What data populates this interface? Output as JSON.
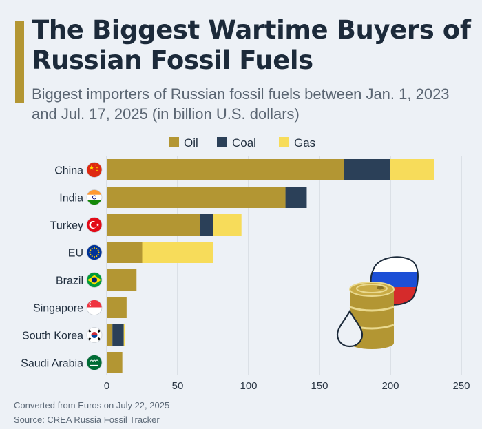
{
  "title": "The Biggest Wartime Buyers of Russian Fossil Fuels",
  "subtitle": "Biggest importers of Russian fossil fuels between Jan. 1, 2023 and Jul. 17, 2025 (in billion U.S. dollars)",
  "footer": {
    "note": "Converted from Euros on July 22, 2025",
    "source": "Source: CREA Russia Fossil Tracker"
  },
  "colors": {
    "accent": "#b39633",
    "oil": "#b39633",
    "coal": "#2b4058",
    "gas": "#f7dc5a",
    "grid": "#c9cfd6",
    "background": "#edf1f6"
  },
  "chart_data": {
    "type": "bar",
    "orientation": "horizontal",
    "stacked": true,
    "title": "The Biggest Wartime Buyers of Russian Fossil Fuels",
    "subtitle": "Biggest importers of Russian fossil fuels between Jan. 1, 2023 and Jul. 17, 2025 (in billion U.S. dollars)",
    "categories": [
      "China",
      "India",
      "Turkey",
      "EU",
      "Brazil",
      "Singapore",
      "South Korea",
      "Saudi Arabia"
    ],
    "flag_icons": [
      "china-flag-icon",
      "india-flag-icon",
      "turkey-flag-icon",
      "eu-flag-icon",
      "brazil-flag-icon",
      "singapore-flag-icon",
      "south-korea-flag-icon",
      "saudi-arabia-flag-icon"
    ],
    "series": [
      {
        "name": "Oil",
        "color": "#b39633",
        "values": [
          167,
          126,
          66,
          25,
          21,
          14,
          4,
          11
        ]
      },
      {
        "name": "Coal",
        "color": "#2b4058",
        "values": [
          33,
          15,
          9,
          0,
          0,
          0,
          8,
          0
        ]
      },
      {
        "name": "Gas",
        "color": "#f7dc5a",
        "values": [
          31,
          0,
          20,
          50,
          0,
          0,
          1,
          0
        ]
      }
    ],
    "xticks": [
      "0",
      "50",
      "100",
      "150",
      "200",
      "250"
    ],
    "xlim": [
      0,
      250
    ],
    "xlabel": "",
    "ylabel": "",
    "grid": true,
    "legend_position": "top"
  },
  "illustration": "oil-barrel-with-russian-flag-and-oil-drop-icon"
}
